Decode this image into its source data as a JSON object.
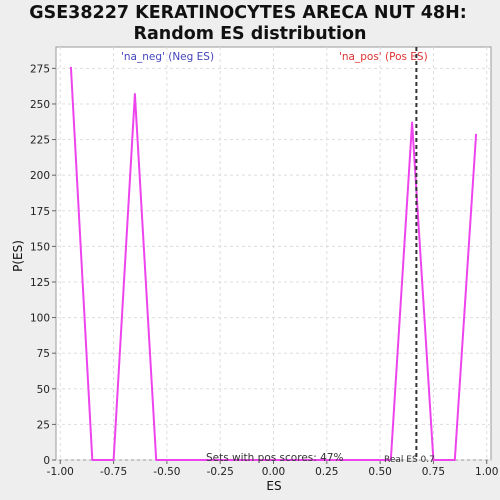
{
  "chart_data": {
    "type": "line",
    "title_line1": "GSE38227 KERATINOCYTES ARECA NUT 48H:",
    "title_line2": "Random ES distribution",
    "xlabel": "ES",
    "ylabel": "P(ES)",
    "xlim": [
      -1.02,
      1.02
    ],
    "ylim": [
      0,
      290
    ],
    "x_ticks": [
      -1.0,
      -0.75,
      -0.5,
      -0.25,
      0.0,
      0.25,
      0.5,
      0.75,
      1.0
    ],
    "x_tick_labels": [
      "-1.00",
      "-0.75",
      "-0.50",
      "-0.25",
      "0.00",
      "0.25",
      "0.50",
      "0.75",
      "1.00"
    ],
    "y_ticks": [
      0,
      25,
      50,
      75,
      100,
      125,
      150,
      175,
      200,
      225,
      250,
      275
    ],
    "y_tick_labels": [
      "0",
      "25",
      "50",
      "75",
      "100",
      "125",
      "150",
      "175",
      "200",
      "225",
      "250",
      "275"
    ],
    "grid": true,
    "neg_label": "'na_neg' (Neg ES)",
    "pos_label": "'na_pos' (Pos ES)",
    "sets_label": "Sets with pos scores: 47%",
    "real_es_label": "Real ES 0.7",
    "real_es": 0.67,
    "colors": {
      "line": "#ee44ee",
      "neg": "#4444bb",
      "pos": "#dd3333",
      "real_es": "#333333",
      "grid": "#dddddd"
    },
    "series": [
      {
        "x": [
          -0.95,
          -0.85,
          -0.75,
          -0.65,
          -0.55,
          -0.45,
          -0.35,
          -0.25,
          -0.15,
          -0.05,
          0.05,
          0.15,
          0.25,
          0.35,
          0.45,
          0.55,
          0.65,
          0.75,
          0.85,
          0.95
        ],
        "values": [
          276,
          0,
          0,
          257,
          0,
          0,
          0,
          0,
          0,
          0,
          0,
          0,
          0,
          0,
          0,
          0,
          237,
          0,
          0,
          229
        ]
      }
    ]
  }
}
